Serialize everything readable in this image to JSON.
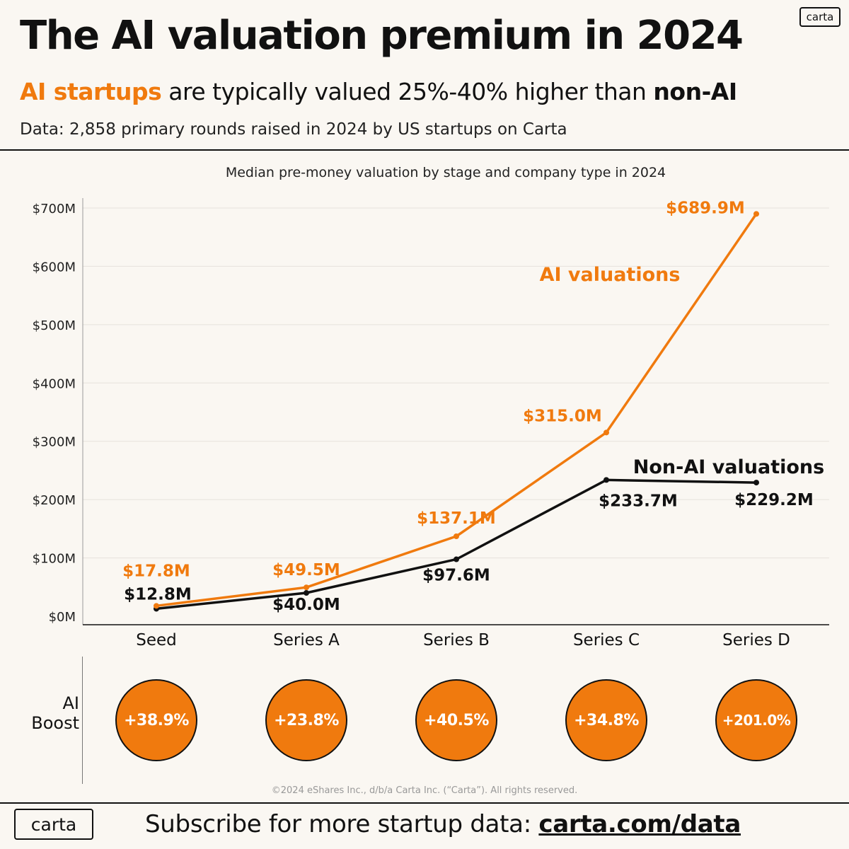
{
  "brand": {
    "logo_text": "carta",
    "accent_color": "#f07a0e",
    "nonai_color": "#111111"
  },
  "header": {
    "title": "The AI valuation premium in 2024",
    "subtitle_ai": "AI startups",
    "subtitle_middle": " are typically valued 25%-40% higher than ",
    "subtitle_nonai": "non-AI",
    "source": "Data: 2,858 primary rounds raised in 2024 by US startups on Carta"
  },
  "chart_data": {
    "type": "line",
    "title": "Median pre-money valuation by stage and company type in 2024",
    "categories": [
      "Seed",
      "Series A",
      "Series B",
      "Series C",
      "Series D"
    ],
    "ylim": [
      0,
      700
    ],
    "yticks": [
      0,
      100,
      200,
      300,
      400,
      500,
      600,
      700
    ],
    "ytick_labels": [
      "$0M",
      "$100M",
      "$200M",
      "$300M",
      "$400M",
      "$500M",
      "$600M",
      "$700M"
    ],
    "grid": true,
    "series": [
      {
        "name": "AI valuations",
        "color": "#f07a0e",
        "values": [
          17.8,
          49.5,
          137.1,
          315.0,
          689.9
        ],
        "labels": [
          "$17.8M",
          "$49.5M",
          "$137.1M",
          "$315.0M",
          "$689.9M"
        ]
      },
      {
        "name": "Non-AI valuations",
        "color": "#111111",
        "values": [
          12.8,
          40.0,
          97.6,
          233.7,
          229.2
        ],
        "labels": [
          "$12.8M",
          "$40.0M",
          "$97.6M",
          "$233.7M",
          "$229.2M"
        ]
      }
    ],
    "ai_boost": {
      "label_line1": "AI",
      "label_line2": "Boost",
      "values": [
        "+38.9%",
        "+23.8%",
        "+40.5%",
        "+34.8%",
        "+201.0%"
      ]
    }
  },
  "footer": {
    "copyright": "©2024 eShares Inc., d/b/a Carta Inc. (“Carta”). All rights reserved.",
    "subscribe_text": "Subscribe for more startup data: ",
    "subscribe_link": "carta.com/data"
  }
}
